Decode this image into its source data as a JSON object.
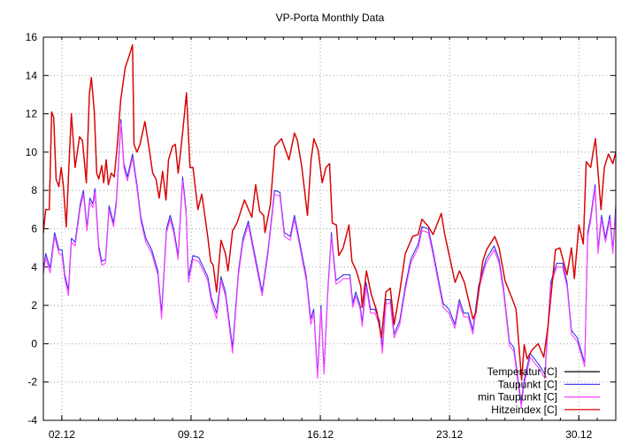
{
  "chart_data": {
    "type": "line",
    "title": "VP-Porta Monthly Data",
    "xlabel": "",
    "ylabel": "",
    "xlim": [
      1,
      32
    ],
    "ylim": [
      -4,
      16
    ],
    "yticks": [
      -4,
      -2,
      0,
      2,
      4,
      6,
      8,
      10,
      12,
      14,
      16
    ],
    "xticks": [
      {
        "value": 2,
        "label": "02.12"
      },
      {
        "value": 9,
        "label": "09.12"
      },
      {
        "value": 16,
        "label": "16.12"
      },
      {
        "value": 23,
        "label": "23.12"
      },
      {
        "value": 30,
        "label": "30.12"
      }
    ],
    "x_unit": "day of December",
    "grid": true,
    "legend_position": "bottom-right",
    "series": [
      {
        "name": "Temperatur [C]",
        "color": "#000000",
        "x": [
          1.0,
          1.13,
          1.32,
          1.45,
          1.56,
          1.69,
          1.84,
          1.97,
          2.08,
          2.24,
          2.4,
          2.52,
          2.72,
          2.96,
          3.12,
          3.33,
          3.49,
          3.6,
          3.76,
          3.89,
          4.0,
          4.16,
          4.27,
          4.4,
          4.52,
          4.68,
          4.84,
          5.0,
          5.19,
          5.43,
          5.64,
          5.83,
          5.91,
          6.07,
          6.23,
          6.5,
          6.71,
          6.92,
          7.1,
          7.27,
          7.46,
          7.64,
          7.78,
          7.99,
          8.15,
          8.3,
          8.54,
          8.75,
          8.94,
          9.1,
          9.37,
          9.58,
          9.9,
          10.06,
          10.2,
          10.38,
          10.62,
          10.86,
          11.0,
          11.25,
          11.49,
          11.89,
          12.29,
          12.5,
          12.72,
          12.93,
          13.0,
          13.3,
          13.54,
          13.9,
          14.3,
          14.6,
          14.76,
          15.0,
          15.3,
          15.5,
          15.65,
          15.88,
          16.1,
          16.31,
          16.5,
          16.65,
          16.87,
          17.0,
          17.24,
          17.55,
          17.71,
          17.95,
          18.19,
          18.27,
          18.5,
          18.75,
          19.06,
          19.31,
          19.55,
          19.79,
          20.0,
          20.3,
          20.6,
          21.0,
          21.3,
          21.5,
          21.86,
          22.1,
          22.55,
          22.74,
          23.3,
          23.54,
          23.8,
          24.26,
          24.42,
          24.8,
          25.0,
          25.45,
          25.68,
          26.0,
          26.41,
          26.6,
          26.9,
          27.04,
          27.2,
          27.45,
          27.8,
          28.1,
          28.33,
          28.73,
          28.97,
          29.36,
          29.6,
          29.76,
          30.0,
          30.24,
          30.4,
          30.64,
          30.9,
          31.2,
          31.38,
          31.6,
          31.84,
          32.0
        ],
        "y": [
          5.8,
          7.0,
          7.0,
          12.1,
          11.8,
          8.6,
          8.2,
          9.2,
          8.3,
          6.1,
          9.6,
          12.0,
          9.2,
          10.8,
          10.6,
          8.4,
          13.0,
          13.9,
          12.1,
          8.9,
          8.6,
          9.3,
          8.4,
          9.6,
          8.3,
          8.9,
          8.7,
          10.3,
          12.7,
          14.4,
          15.0,
          15.6,
          10.4,
          10.0,
          10.4,
          11.6,
          10.3,
          8.9,
          8.6,
          7.6,
          9.0,
          7.5,
          9.6,
          10.3,
          10.4,
          8.9,
          11.0,
          13.1,
          9.2,
          9.2,
          7.0,
          7.8,
          5.6,
          4.3,
          4.1,
          2.7,
          5.4,
          4.7,
          3.8,
          5.9,
          6.3,
          7.5,
          6.6,
          8.3,
          6.9,
          6.7,
          5.8,
          7.3,
          10.3,
          10.7,
          9.6,
          11.0,
          10.6,
          9.2,
          6.7,
          9.6,
          10.7,
          10.1,
          8.4,
          9.2,
          9.4,
          6.3,
          6.2,
          4.6,
          5.0,
          6.2,
          4.3,
          3.8,
          3.0,
          1.9,
          3.8,
          2.6,
          1.7,
          0.3,
          2.7,
          2.9,
          1.0,
          2.7,
          4.7,
          5.6,
          5.7,
          6.5,
          6.1,
          5.7,
          6.8,
          5.7,
          3.2,
          3.8,
          3.2,
          1.3,
          1.6,
          4.3,
          4.9,
          5.6,
          5.0,
          3.3,
          2.3,
          1.8,
          -1.9,
          -0.05,
          -0.8,
          -0.35,
          0.0,
          -0.7,
          0.9,
          4.9,
          5.0,
          3.6,
          5.0,
          3.4,
          6.2,
          5.2,
          9.5,
          9.2,
          10.7,
          7.0,
          9.2,
          9.9,
          9.4,
          10.0
        ]
      },
      {
        "name": "Taupunkt [C]",
        "color": "#3030f0",
        "x": [
          1.0,
          1.13,
          1.37,
          1.61,
          1.85,
          2.01,
          2.16,
          2.36,
          2.52,
          2.72,
          3.0,
          3.17,
          3.36,
          3.52,
          3.68,
          3.8,
          4.0,
          4.16,
          4.37,
          4.56,
          4.8,
          4.96,
          5.2,
          5.36,
          5.55,
          5.83,
          6.07,
          6.28,
          6.55,
          6.87,
          7.2,
          7.4,
          7.67,
          7.87,
          8.06,
          8.3,
          8.54,
          8.73,
          8.86,
          9.1,
          9.42,
          9.66,
          9.9,
          10.1,
          10.38,
          10.62,
          10.86,
          11.25,
          11.57,
          11.81,
          12.1,
          12.38,
          12.85,
          13.17,
          13.52,
          13.81,
          14.05,
          14.37,
          14.6,
          14.84,
          15.24,
          15.48,
          15.64,
          15.85,
          16.04,
          16.2,
          16.4,
          16.6,
          16.7,
          16.85,
          17.26,
          17.6,
          17.76,
          17.92,
          18.16,
          18.27,
          18.48,
          18.72,
          18.96,
          19.2,
          19.36,
          19.55,
          19.79,
          20.0,
          20.3,
          20.6,
          20.9,
          21.3,
          21.5,
          21.85,
          22.09,
          22.41,
          22.65,
          22.97,
          23.29,
          23.53,
          23.77,
          24.01,
          24.26,
          24.57,
          24.97,
          25.41,
          25.68,
          25.92,
          26.24,
          26.48,
          26.88,
          27.04,
          27.36,
          27.6,
          27.84,
          28.16,
          28.48,
          28.8,
          29.12,
          29.36,
          29.6,
          29.92,
          30.32,
          30.48,
          30.64,
          30.88,
          31.04,
          31.23,
          31.44,
          31.68,
          31.84,
          32.0
        ],
        "y": [
          3.8,
          4.7,
          3.95,
          5.8,
          4.9,
          4.9,
          3.6,
          2.8,
          5.5,
          5.3,
          7.3,
          8.0,
          6.1,
          7.6,
          7.3,
          8.1,
          5.1,
          4.3,
          4.4,
          7.2,
          6.3,
          7.5,
          11.7,
          9.4,
          8.7,
          9.9,
          8.3,
          6.6,
          5.5,
          4.9,
          3.8,
          1.6,
          6.0,
          6.7,
          6.0,
          4.6,
          8.7,
          7.0,
          3.5,
          4.6,
          4.5,
          4.0,
          3.5,
          2.4,
          1.6,
          3.5,
          2.7,
          -0.2,
          3.8,
          5.5,
          6.4,
          5.0,
          2.7,
          4.9,
          8.0,
          7.9,
          5.8,
          5.6,
          6.7,
          5.5,
          3.5,
          1.3,
          1.8,
          -1.6,
          2.0,
          -1.4,
          2.7,
          5.8,
          4.7,
          3.3,
          3.6,
          3.6,
          2.1,
          2.7,
          2.0,
          1.1,
          3.2,
          1.8,
          1.8,
          1.2,
          -0.2,
          2.3,
          2.3,
          0.5,
          1.2,
          3.0,
          4.4,
          5.2,
          6.1,
          6.0,
          4.9,
          3.3,
          2.1,
          1.8,
          1.0,
          2.3,
          1.6,
          1.6,
          0.7,
          3.0,
          4.4,
          5.1,
          4.4,
          2.9,
          0.1,
          -0.2,
          -3.1,
          -1.9,
          -0.5,
          -0.8,
          -1.1,
          -1.6,
          3.2,
          4.2,
          4.2,
          3.2,
          0.7,
          0.3,
          -1.0,
          5.8,
          6.6,
          8.3,
          4.9,
          6.7,
          5.5,
          6.7,
          4.9,
          7.2
        ]
      },
      {
        "name": "min Taupunkt [C]",
        "color": "#ff40ff",
        "x": [
          1.0,
          1.13,
          1.37,
          1.61,
          1.85,
          2.01,
          2.16,
          2.36,
          2.52,
          2.72,
          3.0,
          3.17,
          3.36,
          3.52,
          3.68,
          3.8,
          4.0,
          4.16,
          4.37,
          4.56,
          4.8,
          4.96,
          5.2,
          5.36,
          5.55,
          5.83,
          6.07,
          6.28,
          6.55,
          6.87,
          7.2,
          7.4,
          7.67,
          7.87,
          8.06,
          8.3,
          8.54,
          8.73,
          8.86,
          9.1,
          9.42,
          9.66,
          9.9,
          10.1,
          10.38,
          10.62,
          10.86,
          11.25,
          11.57,
          11.81,
          12.1,
          12.38,
          12.85,
          13.17,
          13.52,
          13.81,
          14.05,
          14.37,
          14.6,
          14.84,
          15.24,
          15.48,
          15.64,
          15.85,
          16.04,
          16.2,
          16.4,
          16.6,
          16.7,
          16.85,
          17.26,
          17.6,
          17.76,
          17.92,
          18.16,
          18.27,
          18.48,
          18.72,
          18.96,
          19.2,
          19.36,
          19.55,
          19.79,
          20.0,
          20.3,
          20.6,
          20.9,
          21.3,
          21.5,
          21.85,
          22.09,
          22.41,
          22.65,
          22.97,
          23.29,
          23.53,
          23.77,
          24.01,
          24.26,
          24.57,
          24.97,
          25.41,
          25.68,
          25.92,
          26.24,
          26.48,
          26.88,
          27.04,
          27.36,
          27.6,
          27.84,
          28.16,
          28.48,
          28.8,
          29.12,
          29.36,
          29.6,
          29.92,
          30.32,
          30.48,
          30.64,
          30.88,
          31.04,
          31.23,
          31.44,
          31.68,
          31.84,
          32.0
        ],
        "y": [
          3.6,
          4.5,
          3.7,
          5.6,
          4.7,
          4.6,
          3.4,
          2.5,
          5.3,
          5.1,
          7.1,
          7.8,
          5.9,
          7.4,
          7.1,
          7.9,
          4.9,
          4.1,
          4.2,
          7.0,
          6.1,
          7.3,
          11.5,
          9.2,
          8.5,
          9.7,
          8.1,
          6.4,
          5.3,
          4.7,
          3.6,
          1.3,
          5.8,
          6.5,
          5.8,
          4.4,
          8.5,
          6.8,
          3.2,
          4.4,
          4.3,
          3.8,
          3.3,
          2.2,
          1.3,
          3.3,
          2.5,
          -0.5,
          3.6,
          5.3,
          6.2,
          4.8,
          2.5,
          4.7,
          7.8,
          7.7,
          5.6,
          5.4,
          6.5,
          5.3,
          3.3,
          1.0,
          1.6,
          -1.8,
          1.8,
          -1.6,
          2.5,
          5.6,
          4.5,
          3.1,
          3.4,
          3.4,
          1.9,
          2.5,
          1.8,
          0.9,
          3.0,
          1.6,
          1.6,
          1.0,
          -0.5,
          2.1,
          2.1,
          0.3,
          1.0,
          2.8,
          4.2,
          5.0,
          5.9,
          5.8,
          4.7,
          3.1,
          1.9,
          1.6,
          0.8,
          2.1,
          1.4,
          1.4,
          0.5,
          2.8,
          4.2,
          4.9,
          4.2,
          2.7,
          -0.1,
          -0.4,
          -3.3,
          -2.1,
          -0.7,
          -1.0,
          -1.3,
          -1.8,
          3.0,
          4.0,
          4.0,
          3.0,
          0.5,
          0.1,
          -1.2,
          5.6,
          6.4,
          8.1,
          4.7,
          6.5,
          5.3,
          6.5,
          4.7,
          7.0
        ]
      },
      {
        "name": "Hitzeindex [C]",
        "color": "#e00000",
        "x": [
          1.0,
          1.13,
          1.32,
          1.45,
          1.56,
          1.69,
          1.84,
          1.97,
          2.08,
          2.24,
          2.4,
          2.52,
          2.72,
          2.96,
          3.12,
          3.33,
          3.49,
          3.6,
          3.76,
          3.89,
          4.0,
          4.16,
          4.27,
          4.4,
          4.52,
          4.68,
          4.84,
          5.0,
          5.19,
          5.43,
          5.64,
          5.83,
          5.91,
          6.07,
          6.23,
          6.5,
          6.71,
          6.92,
          7.1,
          7.27,
          7.46,
          7.64,
          7.78,
          7.99,
          8.15,
          8.3,
          8.54,
          8.75,
          8.94,
          9.1,
          9.37,
          9.58,
          9.9,
          10.06,
          10.2,
          10.38,
          10.62,
          10.86,
          11.0,
          11.25,
          11.49,
          11.89,
          12.29,
          12.5,
          12.72,
          12.93,
          13.0,
          13.3,
          13.54,
          13.9,
          14.3,
          14.6,
          14.76,
          15.0,
          15.3,
          15.5,
          15.65,
          15.88,
          16.1,
          16.31,
          16.5,
          16.65,
          16.87,
          17.0,
          17.24,
          17.55,
          17.71,
          17.95,
          18.19,
          18.27,
          18.5,
          18.75,
          19.06,
          19.31,
          19.55,
          19.79,
          20.0,
          20.3,
          20.6,
          21.0,
          21.3,
          21.5,
          21.86,
          22.1,
          22.55,
          22.74,
          23.3,
          23.54,
          23.8,
          24.26,
          24.42,
          24.8,
          25.0,
          25.45,
          25.68,
          26.0,
          26.41,
          26.6,
          26.9,
          27.04,
          27.2,
          27.45,
          27.8,
          28.1,
          28.33,
          28.73,
          28.97,
          29.36,
          29.6,
          29.76,
          30.0,
          30.24,
          30.4,
          30.64,
          30.9,
          31.2,
          31.38,
          31.6,
          31.84,
          32.0
        ],
        "y": [
          5.8,
          7.0,
          7.0,
          12.1,
          11.8,
          8.6,
          8.2,
          9.2,
          8.3,
          6.1,
          9.6,
          12.0,
          9.2,
          10.8,
          10.6,
          8.4,
          13.0,
          13.9,
          12.1,
          8.9,
          8.6,
          9.3,
          8.4,
          9.6,
          8.3,
          8.9,
          8.7,
          10.3,
          12.7,
          14.4,
          15.0,
          15.6,
          10.4,
          10.0,
          10.4,
          11.6,
          10.3,
          8.9,
          8.6,
          7.6,
          9.0,
          7.5,
          9.6,
          10.3,
          10.4,
          8.9,
          11.0,
          13.1,
          9.2,
          9.2,
          7.0,
          7.8,
          5.6,
          4.3,
          4.1,
          2.7,
          5.4,
          4.7,
          3.8,
          5.9,
          6.3,
          7.5,
          6.6,
          8.3,
          6.9,
          6.7,
          5.8,
          7.3,
          10.3,
          10.7,
          9.6,
          11.0,
          10.6,
          9.2,
          6.7,
          9.6,
          10.7,
          10.1,
          8.4,
          9.2,
          9.4,
          6.3,
          6.2,
          4.6,
          5.0,
          6.2,
          4.3,
          3.8,
          3.0,
          1.9,
          3.8,
          2.6,
          1.7,
          0.3,
          2.7,
          2.9,
          1.0,
          2.7,
          4.7,
          5.6,
          5.7,
          6.5,
          6.1,
          5.7,
          6.8,
          5.7,
          3.2,
          3.8,
          3.2,
          1.3,
          1.6,
          4.3,
          4.9,
          5.6,
          5.0,
          3.3,
          2.3,
          1.8,
          -1.9,
          -0.05,
          -0.8,
          -0.35,
          0.0,
          -0.7,
          0.9,
          4.9,
          5.0,
          3.6,
          5.0,
          3.4,
          6.2,
          5.2,
          9.5,
          9.2,
          10.7,
          7.0,
          9.2,
          9.9,
          9.4,
          10.0
        ]
      }
    ]
  }
}
